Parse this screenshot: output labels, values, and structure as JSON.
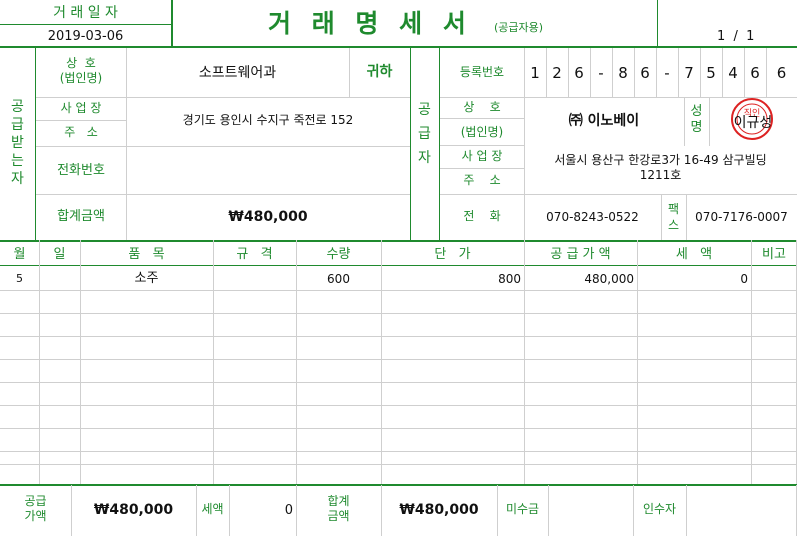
{
  "header": {
    "date_label": "거 래 일 자",
    "date_value": "2019-03-06",
    "title": "거 래 명 세 서",
    "subtitle": "(공급자용)",
    "page": "1  /  1"
  },
  "buyer": {
    "side_label": "공\n급\n받\n는\n자",
    "name_label_1": "상  호",
    "name_label_2": "(법인명)",
    "name_value": "소프트웨어과",
    "honorific": "귀하",
    "address_label_1": "사 업 장",
    "address_label_2": "주   소",
    "address_value": "경기도 용인시 수지구 죽전로 152",
    "phone_label": "전화번호",
    "phone_value": "",
    "total_label": "합계금액",
    "total_value": "₩480,000"
  },
  "supplier": {
    "side_label": "공\n급\n자",
    "reg_label": "등록번호",
    "reg_digits": [
      "1",
      "2",
      "6",
      "-",
      "8",
      "6",
      "-",
      "7",
      "5",
      "4",
      "6",
      "6"
    ],
    "name_label_1": "상    호",
    "name_label_2": "(법인명)",
    "name_value": "㈜ 이노베이",
    "rep_label": "성\n명",
    "rep_value": "이규성",
    "seal_text": "직인",
    "address_label_1": "사 업 장",
    "address_label_2": "주    소",
    "address_value_1": "서울시 용산구 한강로3가 16-49 삼구빌딩",
    "address_value_2": "1211호",
    "phone_label": "전    화",
    "phone_value": "070-8243-0522",
    "fax_label": "팩\n스",
    "fax_value": "070-7176-0007"
  },
  "items": {
    "headers": {
      "month": "월",
      "day": "일",
      "item": "품   목",
      "spec": "규   격",
      "qty": "수량",
      "unit_price": "단   가",
      "supply": "공 급 가 액",
      "tax": "세   액",
      "note": "비고"
    },
    "rows": [
      {
        "month": "5",
        "day": "",
        "item": "소주",
        "spec": "",
        "qty": "600",
        "unit_price": "800",
        "supply": "480,000",
        "tax": "0",
        "note": ""
      }
    ]
  },
  "footer": {
    "supply_label": "공급\n가액",
    "supply_value": "₩480,000",
    "tax_label": "세액",
    "tax_value": "0",
    "total_label": "합계\n금액",
    "total_value": "₩480,000",
    "unpaid_label": "미수금",
    "unpaid_value": "",
    "receiver_label": "인수자",
    "receiver_value": ""
  },
  "colors": {
    "accent": "#1f8a2e",
    "grid": "#cfcfcf",
    "seal": "#d22"
  }
}
